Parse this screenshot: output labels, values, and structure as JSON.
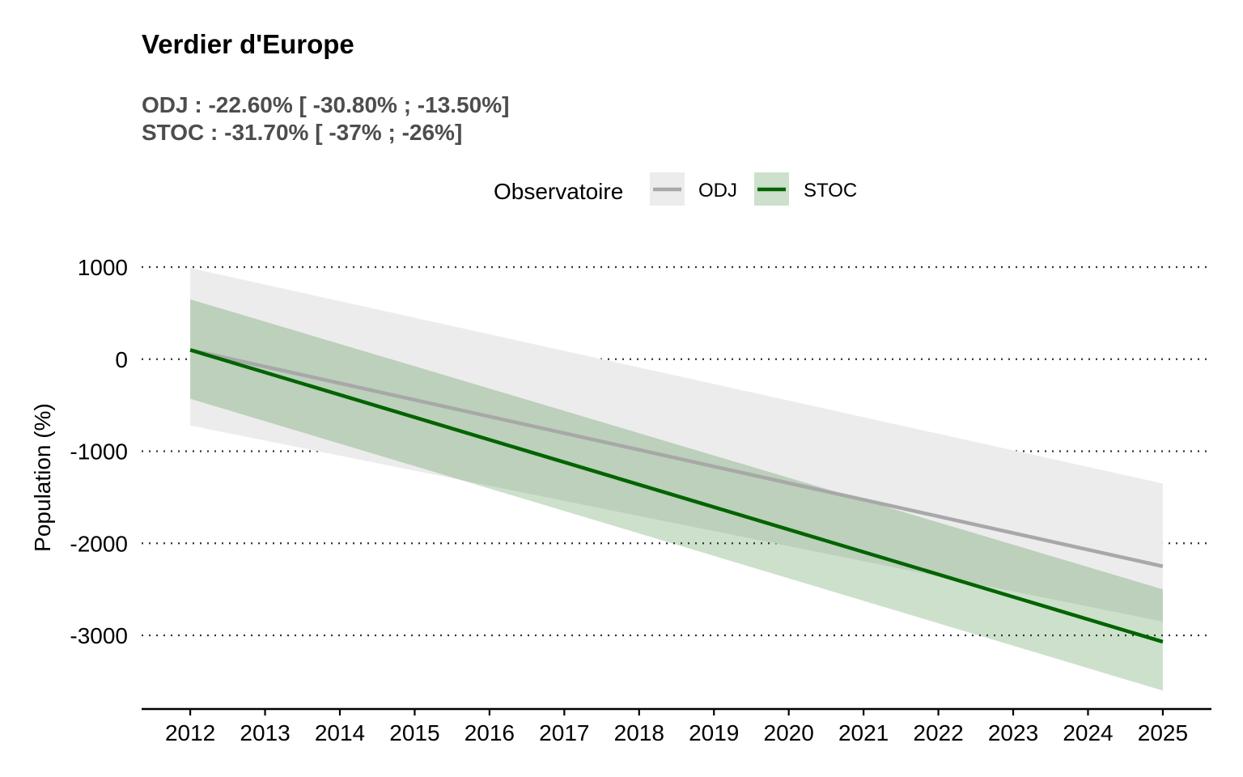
{
  "chart_data": {
    "type": "line",
    "title": "Verdier d'Europe",
    "subtitle_lines": [
      "ODJ : -22.60% [ -30.80% ; -13.50%]",
      "STOC : -31.70% [ -37% ; -26%]"
    ],
    "xlabel": "",
    "ylabel": "Population (%)",
    "x": [
      2012,
      2025
    ],
    "xlim": [
      2011.35,
      2025.65
    ],
    "ylim": [
      -3800,
      1000
    ],
    "x_ticks": [
      2012,
      2013,
      2014,
      2015,
      2016,
      2017,
      2018,
      2019,
      2020,
      2021,
      2022,
      2023,
      2024,
      2025
    ],
    "y_ticks": [
      1000,
      0,
      -1000,
      -2000,
      -3000
    ],
    "grid": "horizontal dotted",
    "legend": {
      "title": "Observatoire",
      "position": "top",
      "entries": [
        "ODJ",
        "STOC"
      ]
    },
    "series": [
      {
        "name": "ODJ",
        "color": "#a8a8a8",
        "ribbon_color": "#ececec",
        "ribbon_opacity": 1,
        "values": [
          100,
          -2250
        ],
        "lower": [
          -720,
          -2850
        ],
        "upper": [
          990,
          -1350
        ]
      },
      {
        "name": "STOC",
        "color": "#006400",
        "ribbon_color": "#006400",
        "ribbon_opacity": 0.2,
        "values": [
          100,
          -3070
        ],
        "lower": [
          -430,
          -3600
        ],
        "upper": [
          650,
          -2500
        ]
      }
    ]
  }
}
